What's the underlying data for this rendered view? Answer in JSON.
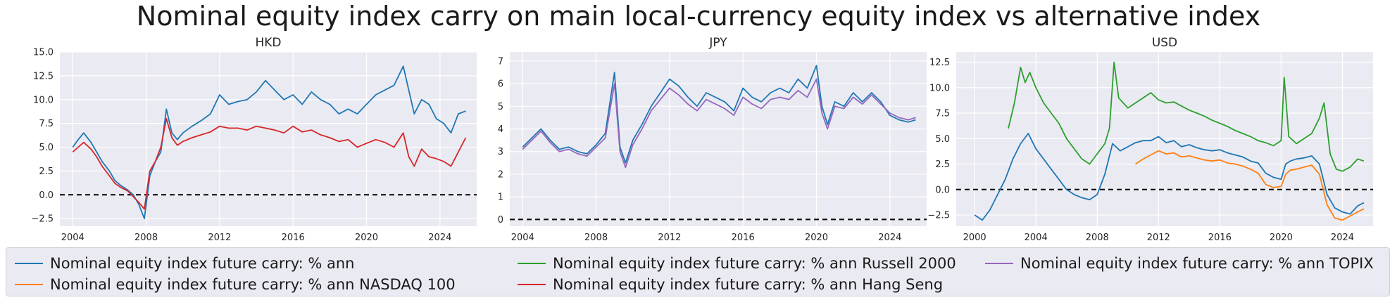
{
  "suptitle": "Nominal equity index carry on main local-currency equity index vs alternative index",
  "colors": {
    "ann": "#1f77b4",
    "nasdaq": "#ff7f0e",
    "russell": "#2ca02c",
    "hangseng": "#d62728",
    "topix": "#9467bd",
    "panel_bg": "#eaeaf2",
    "grid": "#ffffff"
  },
  "legend": {
    "items": [
      {
        "label": "Nominal equity index future carry: % ann",
        "color": "#1f77b4"
      },
      {
        "label": "Nominal equity index future carry: % ann NASDAQ 100",
        "color": "#ff7f0e"
      },
      {
        "label": "Nominal equity index future carry: % ann Russell 2000",
        "color": "#2ca02c"
      },
      {
        "label": "Nominal equity index future carry: % ann Hang Seng",
        "color": "#d62728"
      },
      {
        "label": "Nominal equity index future carry: % ann TOPIX",
        "color": "#9467bd"
      }
    ]
  },
  "chart_data": [
    {
      "type": "line",
      "title": "HKD",
      "xlim": [
        2003.3,
        2026.0
      ],
      "ylim": [
        -3.3,
        15.0
      ],
      "xticks": [
        2004,
        2008,
        2012,
        2016,
        2020,
        2024
      ],
      "yticks": [
        -2.5,
        0.0,
        2.5,
        5.0,
        7.5,
        10.0,
        12.5,
        15.0
      ],
      "yticklabels": [
        "−2.5",
        "0.0",
        "2.5",
        "5.0",
        "7.5",
        "10.0",
        "12.5",
        "15.0"
      ],
      "hline": 0,
      "series": [
        {
          "name": "Nominal equity index future carry: % ann",
          "color": "#1f77b4",
          "x": [
            2004.0,
            2004.3,
            2004.6,
            2005.0,
            2005.3,
            2005.6,
            2006.0,
            2006.3,
            2006.6,
            2007.0,
            2007.3,
            2007.6,
            2007.9,
            2008.2,
            2008.5,
            2008.8,
            2009.1,
            2009.4,
            2009.7,
            2010.0,
            2010.5,
            2011.0,
            2011.5,
            2012.0,
            2012.5,
            2013.0,
            2013.5,
            2014.0,
            2014.5,
            2015.0,
            2015.5,
            2016.0,
            2016.5,
            2017.0,
            2017.5,
            2018.0,
            2018.5,
            2019.0,
            2019.5,
            2020.0,
            2020.5,
            2021.0,
            2021.5,
            2022.0,
            2022.3,
            2022.6,
            2023.0,
            2023.4,
            2023.8,
            2024.2,
            2024.6,
            2025.0,
            2025.4
          ],
          "y": [
            5.0,
            5.8,
            6.5,
            5.5,
            4.5,
            3.5,
            2.5,
            1.5,
            1.0,
            0.5,
            0.0,
            -1.0,
            -2.5,
            2.0,
            3.5,
            4.5,
            9.0,
            6.5,
            5.8,
            6.5,
            7.2,
            7.8,
            8.5,
            10.5,
            9.5,
            9.8,
            10.0,
            10.8,
            12.0,
            11.0,
            10.0,
            10.5,
            9.5,
            10.8,
            10.0,
            9.5,
            8.5,
            9.0,
            8.5,
            9.5,
            10.5,
            11.0,
            11.5,
            13.5,
            11.0,
            8.5,
            10.0,
            9.5,
            8.0,
            7.5,
            6.5,
            8.5,
            8.8
          ]
        },
        {
          "name": "Nominal equity index future carry: % ann Hang Seng",
          "color": "#d62728",
          "x": [
            2004.0,
            2004.3,
            2004.6,
            2005.0,
            2005.3,
            2005.6,
            2006.0,
            2006.3,
            2006.6,
            2007.0,
            2007.3,
            2007.6,
            2007.9,
            2008.2,
            2008.5,
            2008.8,
            2009.1,
            2009.4,
            2009.7,
            2010.0,
            2010.5,
            2011.0,
            2011.5,
            2012.0,
            2012.5,
            2013.0,
            2013.5,
            2014.0,
            2014.5,
            2015.0,
            2015.5,
            2016.0,
            2016.5,
            2017.0,
            2017.5,
            2018.0,
            2018.5,
            2019.0,
            2019.5,
            2020.0,
            2020.5,
            2021.0,
            2021.5,
            2022.0,
            2022.3,
            2022.6,
            2023.0,
            2023.4,
            2023.8,
            2024.2,
            2024.6,
            2025.0,
            2025.4
          ],
          "y": [
            4.5,
            5.0,
            5.5,
            4.8,
            4.0,
            3.0,
            2.0,
            1.2,
            0.8,
            0.4,
            -0.2,
            -0.8,
            -1.5,
            2.5,
            3.5,
            5.0,
            8.0,
            6.0,
            5.2,
            5.6,
            6.0,
            6.3,
            6.6,
            7.2,
            7.0,
            7.0,
            6.8,
            7.2,
            7.0,
            6.8,
            6.5,
            7.2,
            6.6,
            6.8,
            6.3,
            6.0,
            5.6,
            5.8,
            5.0,
            5.4,
            5.8,
            5.5,
            5.0,
            6.5,
            4.0,
            3.0,
            4.8,
            4.0,
            3.8,
            3.5,
            3.0,
            4.5,
            6.0
          ]
        }
      ]
    },
    {
      "type": "line",
      "title": "JPY",
      "xlim": [
        2003.3,
        2026.0
      ],
      "ylim": [
        -0.3,
        7.4
      ],
      "xticks": [
        2004,
        2008,
        2012,
        2016,
        2020,
        2024
      ],
      "yticks": [
        0,
        1,
        2,
        3,
        4,
        5,
        6,
        7
      ],
      "yticklabels": [
        "0",
        "1",
        "2",
        "3",
        "4",
        "5",
        "6",
        "7"
      ],
      "hline": 0,
      "series": [
        {
          "name": "Nominal equity index future carry: % ann",
          "color": "#1f77b4",
          "x": [
            2004.0,
            2004.5,
            2005.0,
            2005.5,
            2006.0,
            2006.5,
            2007.0,
            2007.5,
            2008.0,
            2008.5,
            2009.0,
            2009.3,
            2009.6,
            2010.0,
            2010.5,
            2011.0,
            2011.5,
            2012.0,
            2012.5,
            2013.0,
            2013.5,
            2014.0,
            2014.5,
            2015.0,
            2015.5,
            2016.0,
            2016.5,
            2017.0,
            2017.5,
            2018.0,
            2018.5,
            2019.0,
            2019.5,
            2020.0,
            2020.3,
            2020.6,
            2021.0,
            2021.5,
            2022.0,
            2022.5,
            2023.0,
            2023.5,
            2024.0,
            2024.5,
            2025.0,
            2025.4
          ],
          "y": [
            3.2,
            3.6,
            4.0,
            3.5,
            3.1,
            3.2,
            3.0,
            2.9,
            3.3,
            3.8,
            6.5,
            3.2,
            2.5,
            3.5,
            4.2,
            5.0,
            5.6,
            6.2,
            5.9,
            5.4,
            5.0,
            5.6,
            5.4,
            5.2,
            4.8,
            5.8,
            5.4,
            5.2,
            5.6,
            5.8,
            5.6,
            6.2,
            5.8,
            6.8,
            5.0,
            4.2,
            5.2,
            5.0,
            5.6,
            5.2,
            5.6,
            5.2,
            4.6,
            4.4,
            4.3,
            4.4
          ]
        },
        {
          "name": "Nominal equity index future carry: % ann TOPIX",
          "color": "#9467bd",
          "x": [
            2004.0,
            2004.5,
            2005.0,
            2005.5,
            2006.0,
            2006.5,
            2007.0,
            2007.5,
            2008.0,
            2008.5,
            2009.0,
            2009.3,
            2009.6,
            2010.0,
            2010.5,
            2011.0,
            2011.5,
            2012.0,
            2012.5,
            2013.0,
            2013.5,
            2014.0,
            2014.5,
            2015.0,
            2015.5,
            2016.0,
            2016.5,
            2017.0,
            2017.5,
            2018.0,
            2018.5,
            2019.0,
            2019.5,
            2020.0,
            2020.3,
            2020.6,
            2021.0,
            2021.5,
            2022.0,
            2022.5,
            2023.0,
            2023.5,
            2024.0,
            2024.5,
            2025.0,
            2025.4
          ],
          "y": [
            3.1,
            3.5,
            3.9,
            3.4,
            3.0,
            3.1,
            2.9,
            2.8,
            3.2,
            3.6,
            6.0,
            3.0,
            2.3,
            3.3,
            4.0,
            4.8,
            5.3,
            5.8,
            5.5,
            5.1,
            4.8,
            5.3,
            5.1,
            4.9,
            4.6,
            5.4,
            5.1,
            4.9,
            5.3,
            5.4,
            5.3,
            5.7,
            5.4,
            6.2,
            4.7,
            4.0,
            5.0,
            4.9,
            5.4,
            5.1,
            5.5,
            5.1,
            4.7,
            4.5,
            4.4,
            4.5
          ]
        }
      ]
    },
    {
      "type": "line",
      "title": "USD",
      "xlim": [
        1998.8,
        2026.0
      ],
      "ylim": [
        -3.6,
        13.5
      ],
      "xticks": [
        2000,
        2004,
        2008,
        2012,
        2016,
        2020,
        2024
      ],
      "yticks": [
        -2.5,
        0.0,
        2.5,
        5.0,
        7.5,
        10.0,
        12.5
      ],
      "yticklabels": [
        "−2.5",
        "0.0",
        "2.5",
        "5.0",
        "7.5",
        "10.0",
        "12.5"
      ],
      "hline": 0,
      "series": [
        {
          "name": "Nominal equity index future carry: % ann",
          "color": "#1f77b4",
          "x": [
            2000.0,
            2000.5,
            2001.0,
            2001.5,
            2002.0,
            2002.5,
            2003.0,
            2003.5,
            2004.0,
            2004.5,
            2005.0,
            2005.5,
            2006.0,
            2006.5,
            2007.0,
            2007.5,
            2008.0,
            2008.5,
            2009.0,
            2009.5,
            2010.0,
            2010.5,
            2011.0,
            2011.5,
            2012.0,
            2012.5,
            2013.0,
            2013.5,
            2014.0,
            2014.5,
            2015.0,
            2015.5,
            2016.0,
            2016.5,
            2017.0,
            2017.5,
            2018.0,
            2018.5,
            2019.0,
            2019.5,
            2020.0,
            2020.3,
            2020.6,
            2021.0,
            2021.5,
            2022.0,
            2022.5,
            2023.0,
            2023.5,
            2024.0,
            2024.5,
            2025.0,
            2025.4
          ],
          "y": [
            -2.5,
            -3.0,
            -2.0,
            -0.5,
            1.0,
            3.0,
            4.5,
            5.5,
            4.0,
            3.0,
            2.0,
            1.0,
            0.0,
            -0.5,
            -0.8,
            -1.0,
            -0.5,
            1.5,
            4.5,
            3.8,
            4.2,
            4.6,
            4.8,
            4.8,
            5.2,
            4.6,
            4.8,
            4.2,
            4.4,
            4.1,
            3.9,
            3.8,
            3.9,
            3.6,
            3.4,
            3.2,
            2.8,
            2.6,
            1.6,
            1.2,
            1.0,
            2.5,
            2.8,
            3.0,
            3.1,
            3.3,
            2.5,
            -0.5,
            -1.8,
            -2.2,
            -2.4,
            -1.6,
            -1.3
          ]
        },
        {
          "name": "Nominal equity index future carry: % ann NASDAQ 100",
          "color": "#ff7f0e",
          "x": [
            2010.5,
            2011.0,
            2011.5,
            2012.0,
            2012.5,
            2013.0,
            2013.5,
            2014.0,
            2014.5,
            2015.0,
            2015.5,
            2016.0,
            2016.5,
            2017.0,
            2017.5,
            2018.0,
            2018.5,
            2019.0,
            2019.5,
            2020.0,
            2020.3,
            2020.6,
            2021.0,
            2021.5,
            2022.0,
            2022.5,
            2023.0,
            2023.5,
            2024.0,
            2024.5,
            2025.0,
            2025.4
          ],
          "y": [
            2.5,
            3.0,
            3.4,
            3.8,
            3.5,
            3.6,
            3.2,
            3.3,
            3.1,
            2.9,
            2.8,
            2.9,
            2.6,
            2.5,
            2.3,
            2.0,
            1.6,
            0.5,
            0.2,
            0.3,
            1.5,
            1.9,
            2.0,
            2.2,
            2.4,
            1.5,
            -1.5,
            -2.8,
            -3.0,
            -2.6,
            -2.2,
            -1.9
          ]
        },
        {
          "name": "Nominal equity index future carry: % ann Russell 2000",
          "color": "#2ca02c",
          "x": [
            2002.2,
            2002.6,
            2003.0,
            2003.3,
            2003.6,
            2004.0,
            2004.5,
            2005.0,
            2005.5,
            2006.0,
            2006.5,
            2007.0,
            2007.5,
            2008.0,
            2008.5,
            2008.8,
            2009.1,
            2009.4,
            2009.7,
            2010.0,
            2010.5,
            2011.0,
            2011.5,
            2012.0,
            2012.5,
            2013.0,
            2013.5,
            2014.0,
            2014.5,
            2015.0,
            2015.5,
            2016.0,
            2016.5,
            2017.0,
            2017.5,
            2018.0,
            2018.5,
            2019.0,
            2019.5,
            2020.0,
            2020.2,
            2020.5,
            2021.0,
            2021.5,
            2022.0,
            2022.5,
            2022.8,
            2023.2,
            2023.6,
            2024.0,
            2024.5,
            2025.0,
            2025.4
          ],
          "y": [
            6.0,
            8.5,
            12.0,
            10.5,
            11.5,
            10.0,
            8.5,
            7.5,
            6.5,
            5.0,
            4.0,
            3.0,
            2.5,
            3.5,
            4.5,
            6.0,
            12.5,
            9.0,
            8.5,
            8.0,
            8.5,
            9.0,
            9.5,
            8.8,
            8.5,
            8.6,
            8.2,
            7.8,
            7.5,
            7.2,
            6.8,
            6.5,
            6.2,
            5.8,
            5.5,
            5.2,
            4.8,
            4.6,
            4.3,
            4.8,
            11.0,
            5.2,
            4.5,
            5.0,
            5.5,
            7.0,
            8.5,
            3.5,
            2.0,
            1.8,
            2.2,
            3.0,
            2.8
          ]
        }
      ]
    }
  ]
}
